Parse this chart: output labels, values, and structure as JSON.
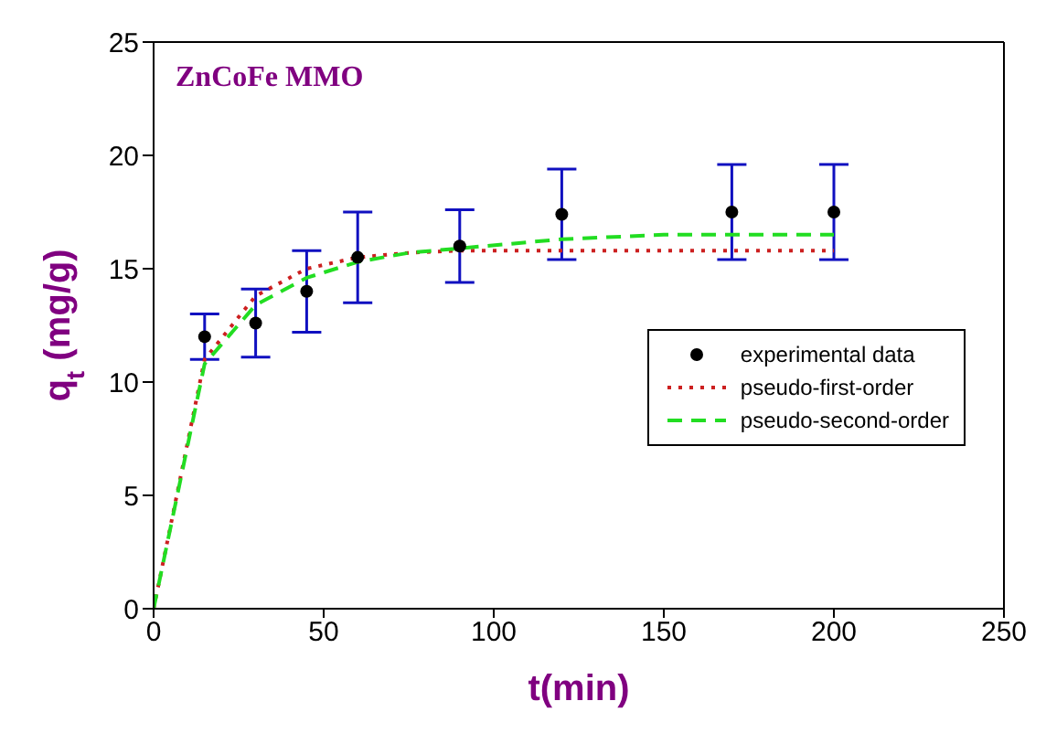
{
  "chart_data": {
    "type": "scatter",
    "title": "ZnCoFe MMO",
    "xlabel": "t(min)",
    "ylabel": "q$_{t}$ (mg/g)",
    "xlim": [
      0,
      250
    ],
    "xticks": [
      0,
      50,
      100,
      150,
      200,
      250
    ],
    "ylim": [
      0,
      25
    ],
    "yticks": [
      0,
      5,
      10,
      15,
      20,
      25
    ],
    "legend": "right",
    "grid": false,
    "series": [
      {
        "name": "experimental data",
        "color": "#000000",
        "marker": "circle",
        "x": [
          15,
          30,
          45,
          60,
          90,
          120,
          170,
          200
        ],
        "values": [
          12.0,
          12.6,
          14.0,
          15.5,
          16.0,
          17.4,
          17.5,
          17.5
        ],
        "errors": [
          1.0,
          1.5,
          1.8,
          2.0,
          1.6,
          2.0,
          2.1,
          2.1
        ]
      },
      {
        "name": "pseudo-first-order",
        "type": "line",
        "color": "#cc2020",
        "line_style": "dotted",
        "marker": "none",
        "x": [
          0,
          15,
          30,
          45,
          60,
          75,
          90,
          120,
          150,
          200
        ],
        "values": [
          0,
          11.0,
          13.8,
          15.0,
          15.5,
          15.7,
          15.8,
          15.8,
          15.8,
          15.8
        ]
      },
      {
        "name": "pseudo-second-order",
        "type": "line",
        "color": "#22dd22",
        "line_style": "dashed",
        "marker": "none",
        "x": [
          0,
          15,
          30,
          45,
          60,
          75,
          90,
          120,
          150,
          200
        ],
        "values": [
          0,
          10.8,
          13.4,
          14.6,
          15.3,
          15.7,
          15.9,
          16.3,
          16.5,
          16.5
        ]
      }
    ]
  }
}
